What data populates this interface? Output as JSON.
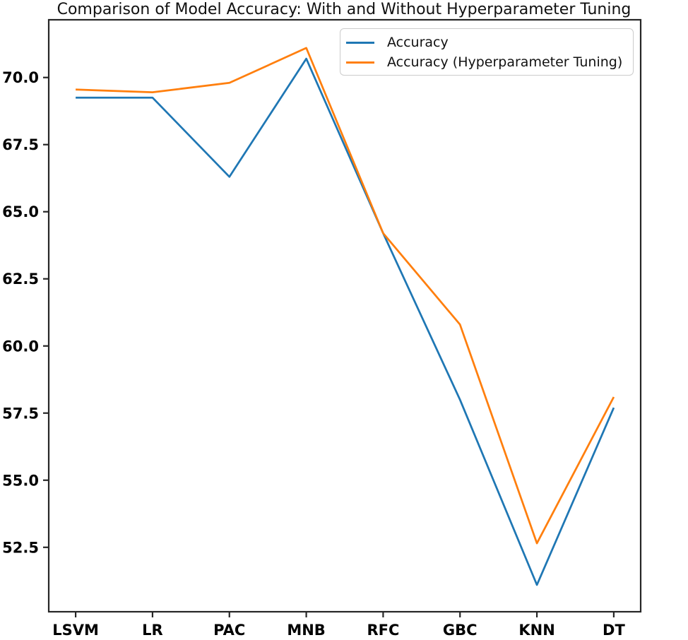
{
  "chart_data": {
    "type": "line",
    "title": "Comparison of Model Accuracy: With and Without Hyperparameter Tuning",
    "categories": [
      "LSVM",
      "LR",
      "PAC",
      "MNB",
      "RFC",
      "GBC",
      "KNN",
      "DT"
    ],
    "series": [
      {
        "name": "Accuracy",
        "color": "#1f77b4",
        "values": [
          69.25,
          69.25,
          66.3,
          70.7,
          64.2,
          58.0,
          51.1,
          57.7
        ]
      },
      {
        "name": "Accuracy (Hyperparameter Tuning)",
        "color": "#ff7f0e",
        "values": [
          69.55,
          69.45,
          69.8,
          71.1,
          64.2,
          60.8,
          52.65,
          58.1
        ]
      }
    ],
    "xlabel": "",
    "ylabel": "",
    "ylim": [
      50.1,
      72.15
    ],
    "yticks": [
      52.5,
      55.0,
      57.5,
      60.0,
      62.5,
      65.0,
      67.5,
      70.0
    ],
    "ytick_labels": [
      "52.5",
      "55.0",
      "57.5",
      "60.0",
      "62.5",
      "65.0",
      "67.5",
      "70.0"
    ],
    "grid": false,
    "legend_position": "upper right",
    "axis_color": "#262626",
    "tick_label_color": "#000000",
    "background_color": "#ffffff"
  }
}
